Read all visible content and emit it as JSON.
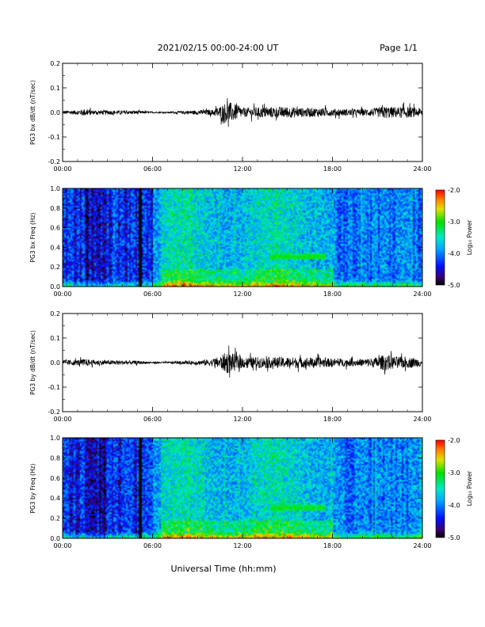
{
  "header": {
    "title": "2021/02/15  00:00-24:00 UT",
    "page": "Page 1/1"
  },
  "xlabel": "Universal Time (hh:mm)",
  "x_ticks": [
    "00:00",
    "06:00",
    "12:00",
    "18:00",
    "24:00"
  ],
  "colorbar": {
    "label": "Log₁₀ Power",
    "ticks": [
      "-2.0",
      "-3.0",
      "-4.0",
      "-5.0"
    ],
    "range": [
      -5.0,
      -2.0
    ]
  },
  "chart_data": [
    {
      "type": "line",
      "ylabel": "PG3 bx dB/dt (nT/sec)",
      "xlim": [
        0,
        24
      ],
      "ylim": [
        -0.2,
        0.2
      ],
      "y_ticks": [
        "0.2",
        "0.1",
        "0.0",
        "-0.1",
        "-0.2"
      ],
      "envelope": {
        "hours": [
          0,
          1,
          1.5,
          2,
          3,
          4,
          5,
          6,
          7,
          8,
          9,
          10,
          10.5,
          11,
          11.5,
          12,
          13,
          14,
          15,
          16,
          17,
          18,
          19,
          20,
          21,
          21.5,
          22,
          23,
          24
        ],
        "amplitude": [
          0.01,
          0.012,
          0.02,
          0.012,
          0.012,
          0.01,
          0.01,
          0.004,
          0.004,
          0.008,
          0.012,
          0.015,
          0.035,
          0.06,
          0.045,
          0.025,
          0.028,
          0.03,
          0.03,
          0.025,
          0.025,
          0.02,
          0.018,
          0.018,
          0.025,
          0.035,
          0.03,
          0.03,
          0.022
        ]
      }
    },
    {
      "type": "heatmap",
      "ylabel": "PG3 bx Freq (Hz)",
      "xlim": [
        0,
        24
      ],
      "ylim": [
        0,
        1.0
      ],
      "y_ticks": [
        "1.0",
        "0.8",
        "0.6",
        "0.4",
        "0.2",
        "0.0"
      ],
      "data_gap_hour": 5.1,
      "features": [
        {
          "start_hour": 13.8,
          "end_hour": 17.5,
          "freq": 0.3,
          "level": -3.0
        },
        {
          "start_hour": 14.0,
          "end_hour": 14.6,
          "freq": 0.5,
          "level": -3.4
        }
      ]
    },
    {
      "type": "line",
      "ylabel": "PG3 by dB/dt (nT/sec)",
      "xlim": [
        0,
        24
      ],
      "ylim": [
        -0.2,
        0.2
      ],
      "y_ticks": [
        "0.2",
        "0.1",
        "0.0",
        "-0.1",
        "-0.2"
      ],
      "envelope": {
        "hours": [
          0,
          1,
          1.5,
          2,
          3,
          4,
          5,
          6,
          7,
          8,
          9,
          10,
          10.5,
          11,
          11.5,
          12,
          13,
          14,
          15,
          16,
          17,
          18,
          19,
          20,
          21,
          21.5,
          22,
          23,
          24
        ],
        "amplitude": [
          0.015,
          0.015,
          0.02,
          0.015,
          0.012,
          0.012,
          0.01,
          0.005,
          0.005,
          0.008,
          0.012,
          0.02,
          0.035,
          0.06,
          0.045,
          0.03,
          0.03,
          0.03,
          0.03,
          0.028,
          0.028,
          0.022,
          0.02,
          0.02,
          0.03,
          0.045,
          0.035,
          0.03,
          0.022
        ]
      }
    },
    {
      "type": "heatmap",
      "ylabel": "PG3 by Freq (Hz)",
      "xlim": [
        0,
        24
      ],
      "ylim": [
        0,
        1.0
      ],
      "y_ticks": [
        "1.0",
        "0.8",
        "0.6",
        "0.4",
        "0.2",
        "0.0"
      ],
      "data_gap_hour": 5.1,
      "features": [
        {
          "start_hour": 13.8,
          "end_hour": 17.5,
          "freq": 0.3,
          "level": -3.0
        },
        {
          "start_hour": 14.0,
          "end_hour": 14.6,
          "freq": 0.5,
          "level": -3.4
        }
      ]
    }
  ]
}
